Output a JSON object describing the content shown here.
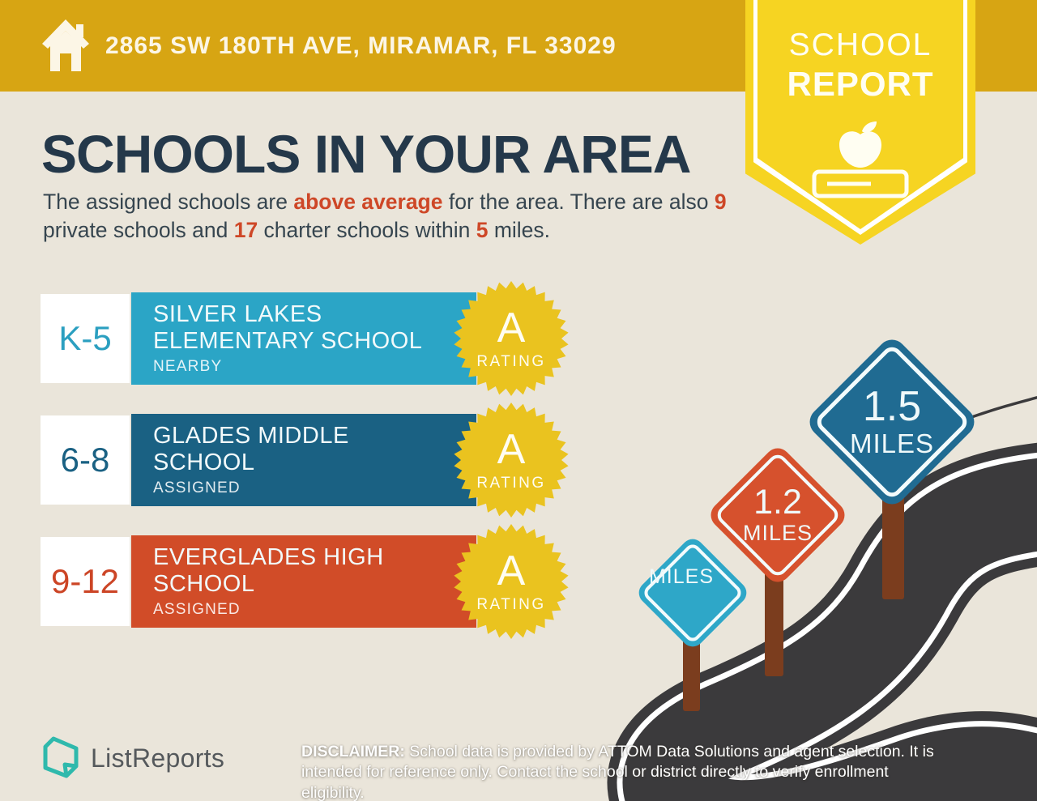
{
  "header": {
    "address": "2865 SW 180TH AVE, MIRAMAR, FL 33029",
    "ribbon": {
      "line1": "SCHOOL",
      "line2": "REPORT"
    }
  },
  "title": "SCHOOLS IN YOUR AREA",
  "subtitle": {
    "pre": "The assigned schools are ",
    "accent1": "above average",
    "mid1": " for the area. There are also ",
    "accent2": "9",
    "mid2": " private schools and ",
    "accent3": "17",
    "mid3": " charter schools within ",
    "accent4": "5",
    "post": " miles."
  },
  "schools": [
    {
      "grade": "K-5",
      "name": "SILVER LAKES ELEMENTARY SCHOOL",
      "status": "NEARBY",
      "rating": "A",
      "rating_label": "RATING",
      "color": "#2BA5C6",
      "grade_color": "#2B9FC0"
    },
    {
      "grade": "6-8",
      "name": "GLADES MIDDLE SCHOOL",
      "status": "ASSIGNED",
      "rating": "A",
      "rating_label": "RATING",
      "color": "#1A6183",
      "grade_color": "#1A6183"
    },
    {
      "grade": "9-12",
      "name": "EVERGLADES HIGH SCHOOL",
      "status": "ASSIGNED",
      "rating": "A",
      "rating_label": "RATING",
      "color": "#D14C28",
      "grade_color": "#CC4526"
    }
  ],
  "signs": [
    {
      "distance": "",
      "unit": "MILES",
      "color": "#2EA7C8"
    },
    {
      "distance": "1.2",
      "unit": "MILES",
      "color": "#D6512D"
    },
    {
      "distance": "1.5",
      "unit": "MILES",
      "color": "#206B92"
    }
  ],
  "footer": {
    "brand": "ListReports",
    "disclaimer_label": "DISCLAIMER:",
    "disclaimer_text": " School data is provided by ATTOM Data Solutions and agent selection. It is intended for reference only. Contact the school or district directly to verify enrollment eligibility."
  },
  "colors": {
    "header_band": "#D7A513",
    "ribbon_yellow": "#F6D422",
    "background": "#EAE5DA",
    "title_navy": "#24384A",
    "accent_red": "#CE4727",
    "badge_gold": "#EAC31F",
    "road_dark": "#3B3A3C",
    "post_brown": "#7B3D1E",
    "logo_teal": "#2FB9AC"
  }
}
